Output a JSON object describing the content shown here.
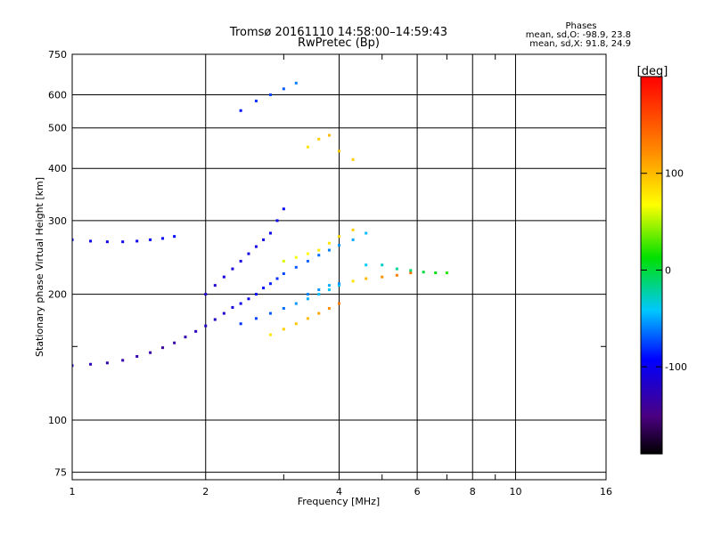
{
  "chart_data": {
    "type": "scatter",
    "title": "Tromsø 20161110 14:58:00–14:59:43",
    "subtitle": "RwPretec (Bp)",
    "xlabel": "Frequency [MHz]",
    "ylabel": "Stationary phase Virtual Height [km]",
    "x_scale": "log",
    "y_scale": "log",
    "xlim": [
      1,
      16
    ],
    "ylim": [
      72,
      750
    ],
    "x_ticks": [
      1,
      2,
      4,
      6,
      8,
      10,
      16
    ],
    "x_minor_ticks": [
      3,
      5,
      7,
      9
    ],
    "y_ticks": [
      75,
      100,
      200,
      300,
      400,
      500,
      600,
      750
    ],
    "y_minor_ticks": [
      150
    ],
    "grid": true,
    "colorbar": {
      "label": "[deg]",
      "min": -190,
      "max": 200,
      "ticks": [
        100,
        0,
        -100
      ]
    },
    "phase_stats": {
      "title": "Phases",
      "line_o": "mean, sd,O: -98.9, 23.8",
      "line_x": "mean, sd,X:  91.8, 24.9"
    },
    "series": [
      {
        "x": [
          1.0,
          1.1,
          1.2,
          1.3,
          1.4,
          1.5,
          1.6,
          1.7,
          1.8,
          1.9,
          2.0,
          2.1,
          2.2,
          2.3,
          2.4,
          2.5,
          2.6,
          2.7,
          2.8,
          2.9,
          3.0,
          3.2,
          3.4,
          3.6,
          3.8,
          4.0,
          4.3,
          4.6
        ],
        "y": [
          135,
          136,
          137,
          139,
          142,
          145,
          149,
          153,
          158,
          163,
          168,
          174,
          180,
          186,
          190,
          195,
          200,
          207,
          212,
          218,
          224,
          232,
          240,
          248,
          255,
          262,
          270,
          280
        ],
        "phase": [
          -120,
          -125,
          -130,
          -132,
          -130,
          -135,
          -140,
          -135,
          -130,
          -125,
          -120,
          -118,
          -115,
          -110,
          -105,
          -100,
          -95,
          -90,
          -85,
          -80,
          -75,
          -70,
          -68,
          -65,
          -60,
          -55,
          -50,
          -45
        ]
      },
      {
        "x": [
          1.0,
          1.1,
          1.2,
          1.3,
          1.4,
          1.5,
          1.6,
          1.7
        ],
        "y": [
          270,
          268,
          267,
          267,
          268,
          270,
          272,
          275
        ],
        "phase": [
          -95,
          -100,
          -105,
          -105,
          -100,
          -98,
          -95,
          -92
        ]
      },
      {
        "x": [
          2.0,
          2.1,
          2.2,
          2.3,
          2.4,
          2.5,
          2.6,
          2.7,
          2.8,
          2.9,
          3.0
        ],
        "y": [
          200,
          210,
          220,
          230,
          240,
          250,
          260,
          270,
          280,
          300,
          320
        ],
        "phase": [
          -115,
          -115,
          -110,
          -112,
          -110,
          -105,
          -108,
          -105,
          -100,
          -98,
          -95
        ]
      },
      {
        "x": [
          2.4,
          2.6,
          2.8,
          3.0,
          3.2,
          3.4,
          3.6,
          3.8,
          4.0
        ],
        "y": [
          170,
          175,
          180,
          185,
          190,
          195,
          200,
          205,
          210
        ],
        "phase": [
          -80,
          -75,
          -70,
          -65,
          -55,
          -50,
          -45,
          -40,
          -40
        ]
      },
      {
        "x": [
          2.8,
          3.0,
          3.2,
          3.4,
          3.6,
          3.8,
          4.0
        ],
        "y": [
          160,
          165,
          170,
          175,
          180,
          185,
          190
        ],
        "phase": [
          80,
          90,
          95,
          100,
          110,
          120,
          130
        ]
      },
      {
        "x": [
          3.0,
          3.2,
          3.4,
          3.6,
          3.8,
          4.0,
          4.3
        ],
        "y": [
          240,
          245,
          250,
          255,
          265,
          275,
          285
        ],
        "phase": [
          60,
          65,
          70,
          75,
          80,
          85,
          90
        ]
      },
      {
        "x": [
          3.4,
          3.6,
          3.8,
          4.0,
          4.3,
          4.6,
          5.0,
          5.4,
          5.8
        ],
        "y": [
          200,
          205,
          210,
          212,
          215,
          218,
          220,
          222,
          225
        ],
        "phase": [
          -60,
          -55,
          -50,
          -55,
          80,
          100,
          120,
          130,
          140
        ]
      },
      {
        "x": [
          4.6,
          5.0,
          5.4,
          5.8,
          6.2,
          6.6,
          7.0
        ],
        "y": [
          235,
          235,
          230,
          228,
          226,
          225,
          225
        ],
        "phase": [
          -40,
          -30,
          -20,
          -10,
          0,
          10,
          20
        ]
      },
      {
        "x": [
          3.4,
          3.6,
          3.8,
          4.0,
          4.3
        ],
        "y": [
          450,
          470,
          480,
          440,
          420
        ],
        "phase": [
          80,
          90,
          100,
          95,
          90
        ]
      },
      {
        "x": [
          2.4,
          2.6,
          2.8,
          3.0,
          3.2
        ],
        "y": [
          550,
          580,
          600,
          620,
          640
        ],
        "phase": [
          -90,
          -80,
          -75,
          -70,
          -60
        ]
      }
    ]
  }
}
